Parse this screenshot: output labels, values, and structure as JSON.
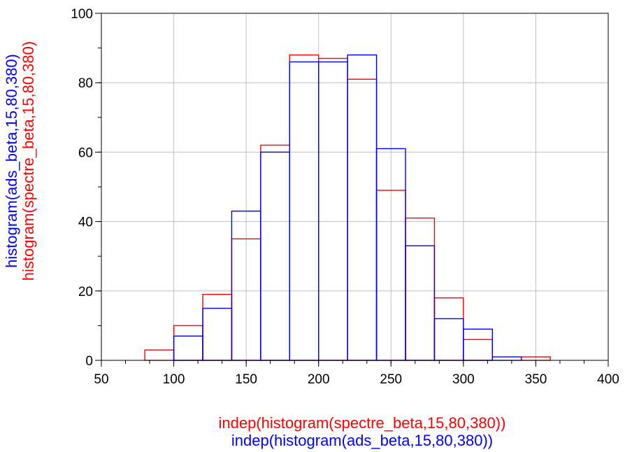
{
  "chart_data": {
    "type": "bar",
    "title": "",
    "x_bin_edges": [
      80,
      100,
      120,
      140,
      160,
      180,
      200,
      220,
      240,
      260,
      280,
      300,
      320,
      340,
      360,
      380
    ],
    "series": [
      {
        "name": "histogram(spectre_beta,15,80,380)",
        "color": "#ff0000",
        "values": [
          3,
          10,
          19,
          35,
          62,
          88,
          87,
          81,
          49,
          41,
          18,
          6,
          0,
          1,
          0
        ]
      },
      {
        "name": "histogram(ads_beta,15,80,380)",
        "color": "#0000ff",
        "values": [
          0,
          7,
          15,
          43,
          60,
          86,
          86,
          88,
          61,
          33,
          12,
          9,
          1,
          0,
          0
        ]
      }
    ],
    "xlim": [
      50,
      400
    ],
    "ylim": [
      0,
      100
    ],
    "x_ticks": [
      "50",
      "100",
      "150",
      "200",
      "250",
      "300",
      "350",
      "400"
    ],
    "y_ticks": [
      "0",
      "20",
      "40",
      "60",
      "80",
      "100"
    ],
    "xlabel_lines": [
      {
        "text": "indep(histogram(spectre_beta,15,80,380))",
        "color": "#ff0000"
      },
      {
        "text": "indep(histogram(ads_beta,15,80,380))",
        "color": "#0000ff"
      }
    ],
    "ylabel_lines": [
      {
        "text": "histogram(ads_beta,15,80,380)",
        "color": "#0000ff"
      },
      {
        "text": "histogram(spectre_beta,15,80,380)",
        "color": "#ff0000"
      }
    ],
    "grid": true,
    "grid_color": "#c0c0c0"
  }
}
